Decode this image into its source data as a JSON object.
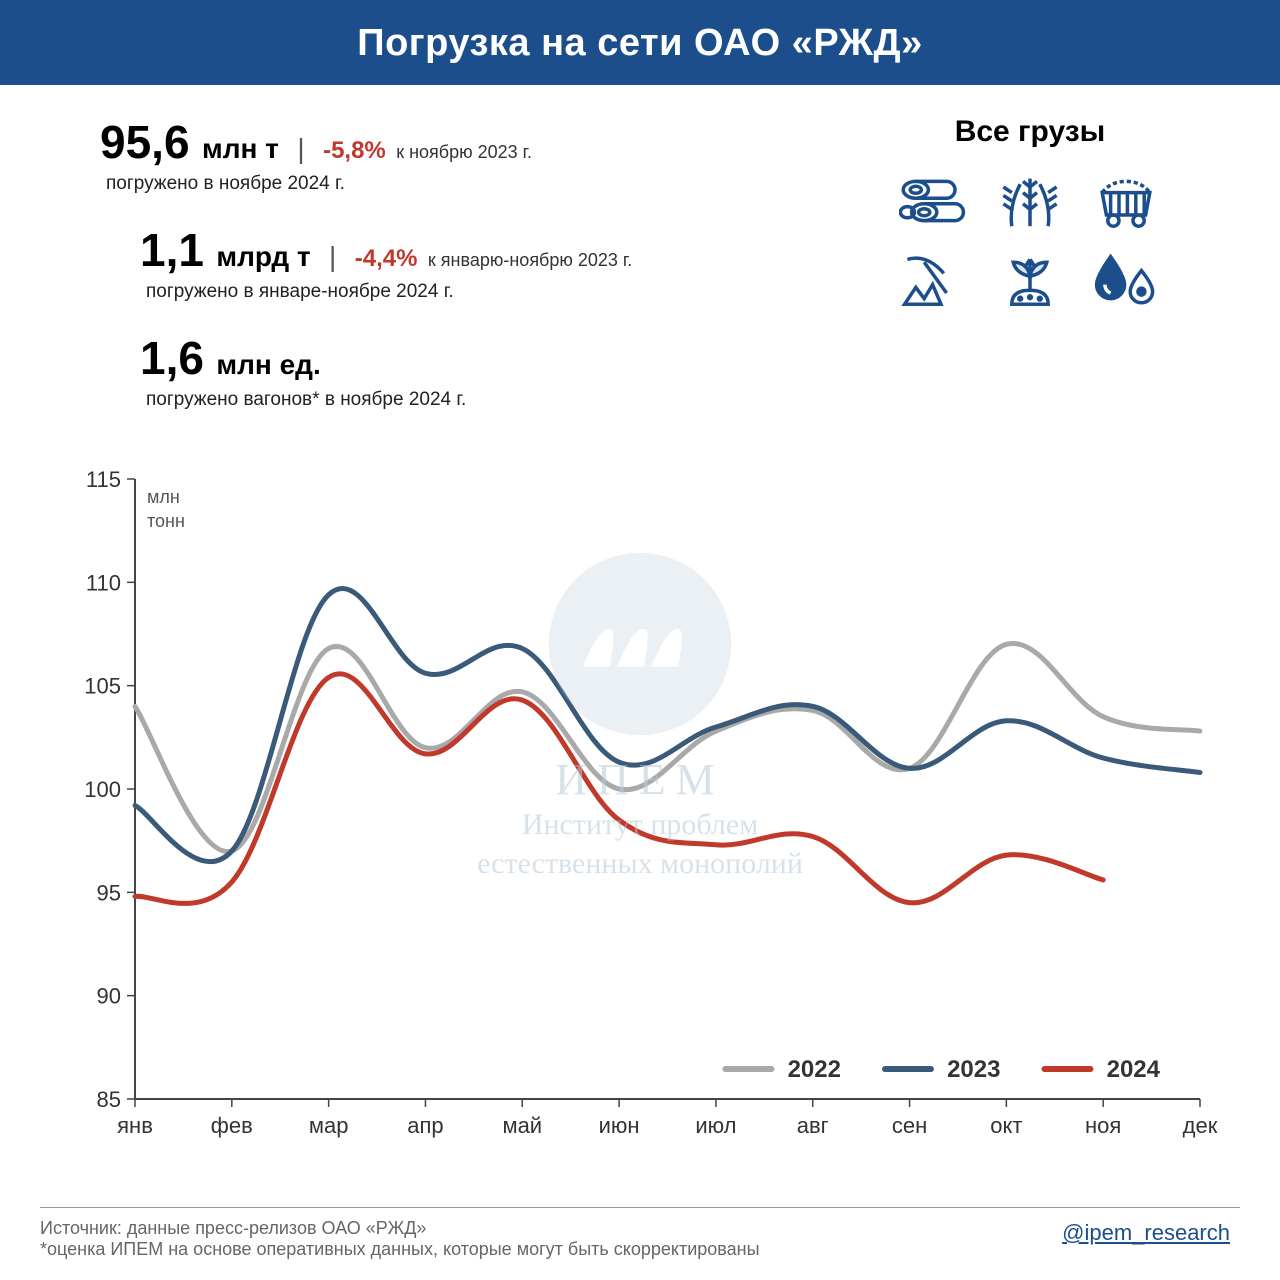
{
  "header": {
    "title": "Погрузка на сети ОАО «РЖД»"
  },
  "stats": {
    "s1": {
      "value": "95,6",
      "unit": "млн т",
      "sep": "|",
      "delta": "-5,8%",
      "delta_sign": "neg",
      "delta_ref": "к ноябрю 2023 г.",
      "sub": "погружено в ноябре 2024 г."
    },
    "s2": {
      "value": "1,1",
      "unit": "млрд т",
      "sep": "|",
      "delta": "-4,4%",
      "delta_sign": "neg",
      "delta_ref": "к январю-ноябрю 2023 г.",
      "sub": "погружено в январе-ноябре 2024 г."
    },
    "s3": {
      "value": "1,6",
      "unit": "млн ед.",
      "sub": "погружено вагонов* в ноябре 2024 г."
    }
  },
  "cargo": {
    "title": "Все грузы",
    "icon_color": "#1c4e8b",
    "icons": [
      "logs-icon",
      "wheat-icon",
      "coal-cart-icon",
      "mining-icon",
      "plant-icon",
      "oil-drops-icon"
    ]
  },
  "chart": {
    "type": "line",
    "y_axis_label": "млн\nтонн",
    "categories": [
      "янв",
      "фев",
      "мар",
      "апр",
      "май",
      "июн",
      "июл",
      "авг",
      "сен",
      "окт",
      "ноя",
      "дек"
    ],
    "ylim": [
      85,
      115
    ],
    "ytick_step": 5,
    "axis_color": "#444",
    "tick_fontsize": 22,
    "line_width": 5,
    "series": [
      {
        "name": "2022",
        "color": "#a9a9a9",
        "values": [
          104.0,
          97.0,
          106.8,
          102.0,
          104.7,
          100.0,
          102.8,
          103.8,
          101.0,
          107.0,
          103.5,
          102.8
        ]
      },
      {
        "name": "2023",
        "color": "#3a5a7a",
        "values": [
          99.2,
          97.0,
          109.4,
          105.6,
          106.8,
          101.3,
          103.0,
          104.0,
          101.0,
          103.3,
          101.5,
          100.8
        ]
      },
      {
        "name": "2024",
        "color": "#c0392b",
        "values": [
          94.8,
          95.5,
          105.4,
          101.7,
          104.3,
          98.5,
          97.3,
          97.7,
          94.5,
          96.8,
          95.6
        ]
      }
    ],
    "legend_fontsize": 24
  },
  "watermark": {
    "name": "ИПЕМ",
    "sub1": "Институт проблем",
    "sub2": "естественных монополий"
  },
  "footer": {
    "source": "Источник: данные пресс-релизов ОАО «РЖД»",
    "note": "*оценка ИПЕМ на основе оперативных данных, которые могут быть скорректированы",
    "handle": "@ipem_research"
  }
}
